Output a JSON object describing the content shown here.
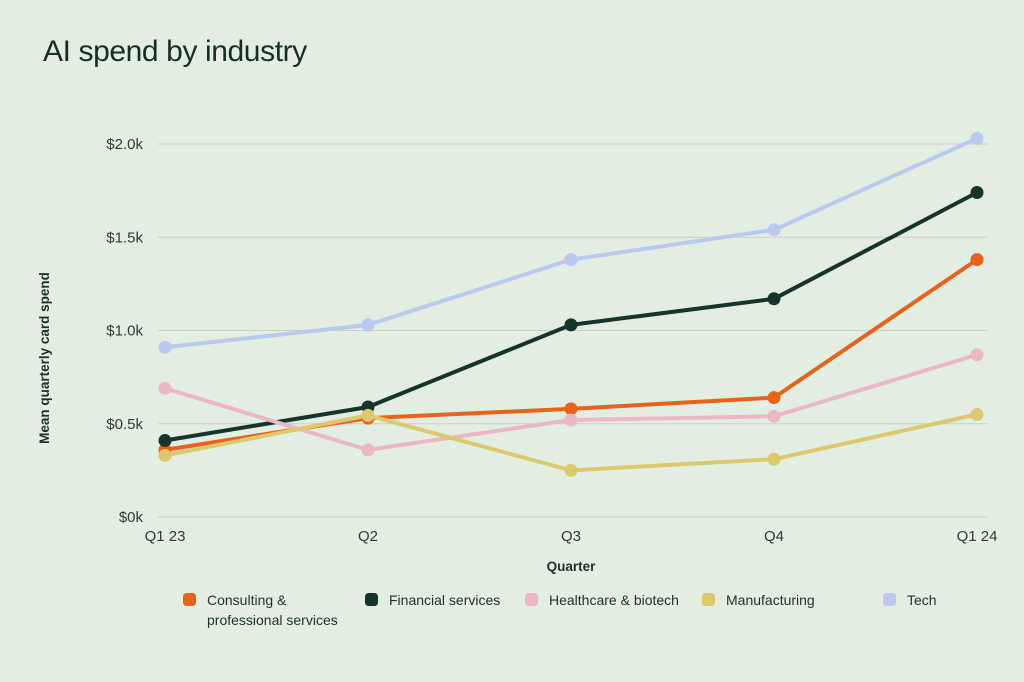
{
  "title": "AI spend by industry",
  "colors": {
    "background": "#e3eee3",
    "gridline": "#c7d0c8",
    "tick_text": "#2e3a33",
    "title_text": "#1b2c24"
  },
  "chart_data": {
    "type": "line",
    "title": "AI spend by industry",
    "x": [
      "Q1 23",
      "Q2",
      "Q3",
      "Q4",
      "Q1 24"
    ],
    "xlabel": "Quarter",
    "ylabel": "Mean quarterly card spend",
    "yticks": [
      {
        "label": "$0k",
        "value": 0
      },
      {
        "label": "$0.5k",
        "value": 0.5
      },
      {
        "label": "$1.0k",
        "value": 1.0
      },
      {
        "label": "$1.5k",
        "value": 1.5
      },
      {
        "label": "$2.0k",
        "value": 2.0
      }
    ],
    "ylim": [
      0,
      2.1
    ],
    "grid": "horizontal",
    "legend_position": "bottom",
    "series": [
      {
        "name": "Consulting & professional services",
        "color": "#ea6119",
        "values": [
          0.36,
          0.53,
          0.58,
          0.64,
          1.38
        ]
      },
      {
        "name": "Financial services",
        "color": "#17342b",
        "values": [
          0.41,
          0.59,
          1.03,
          1.17,
          1.74
        ]
      },
      {
        "name": "Healthcare & biotech",
        "color": "#ecb7c5",
        "values": [
          0.69,
          0.36,
          0.52,
          0.54,
          0.87
        ]
      },
      {
        "name": "Manufacturing",
        "color": "#ddc96d",
        "values": [
          0.33,
          0.545,
          0.25,
          0.31,
          0.55
        ]
      },
      {
        "name": "Tech",
        "color": "#bbc8f0",
        "values": [
          0.91,
          1.03,
          1.38,
          1.54,
          2.03
        ]
      }
    ]
  }
}
